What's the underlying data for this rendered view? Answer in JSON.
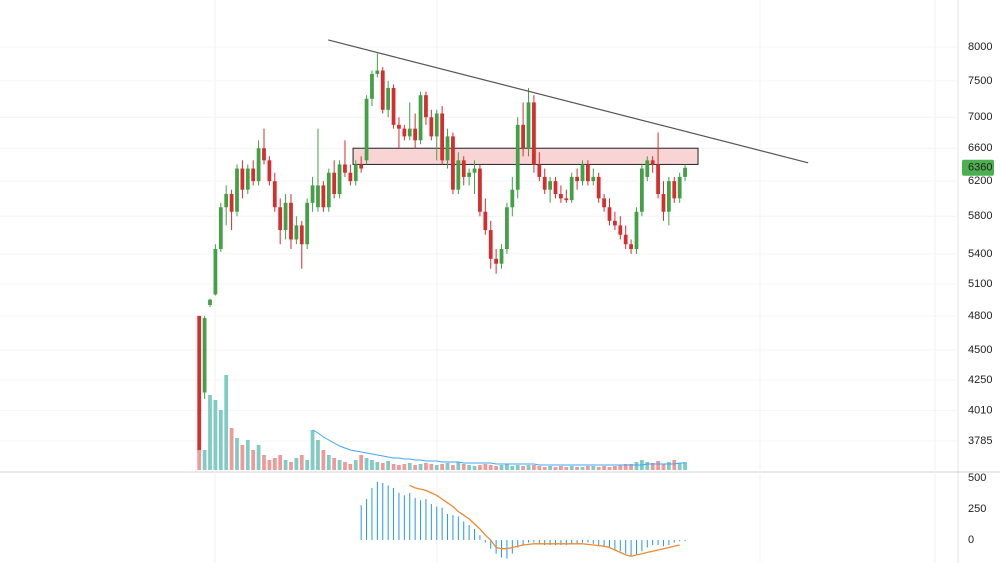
{
  "chart_data": [
    {
      "type": "candlestick",
      "log_scale": true,
      "ylim": [
        3582,
        8746
      ],
      "xlim": [
        -36.9,
        140
      ],
      "yticks": [
        3785,
        4010,
        4250,
        4500,
        4800,
        5100,
        5400,
        5800,
        6200,
        6600,
        7000,
        7500,
        8000
      ],
      "grid": true,
      "up_color": "#43a047",
      "down_color": "#d32f2f",
      "last_price": 6360,
      "last_price_color": "#4caf50",
      "trendline": {
        "x": [
          23.9,
          112.8
        ],
        "y": [
          8107,
          6420
        ],
        "color": "#555555"
      },
      "zone": {
        "x": [
          28.5,
          92.4
        ],
        "y": [
          6400,
          6600
        ],
        "fill": "#f8c9c9",
        "stroke": "#222222"
      },
      "ohlc": [
        [
          4800,
          4800,
          3650,
          3700
        ],
        [
          4150,
          4800,
          4100,
          4780
        ],
        [
          4900,
          4960,
          4880,
          4950
        ],
        [
          5000,
          5500,
          4990,
          5450
        ],
        [
          5450,
          5950,
          5420,
          5900
        ],
        [
          5900,
          6150,
          5700,
          6050
        ],
        [
          6050,
          6100,
          5650,
          5850
        ],
        [
          5850,
          6400,
          5800,
          6350
        ],
        [
          6350,
          6450,
          6000,
          6100
        ],
        [
          6100,
          6400,
          6050,
          6350
        ],
        [
          6350,
          6450,
          6150,
          6200
        ],
        [
          6200,
          6700,
          6150,
          6600
        ],
        [
          6600,
          6850,
          6400,
          6450
        ],
        [
          6450,
          6500,
          6150,
          6200
        ],
        [
          6200,
          6300,
          5850,
          5900
        ],
        [
          5900,
          6000,
          5500,
          5650
        ],
        [
          5650,
          6050,
          5550,
          5950
        ],
        [
          5950,
          6050,
          5450,
          5550
        ],
        [
          5550,
          5800,
          5500,
          5700
        ],
        [
          5700,
          5750,
          5250,
          5500
        ],
        [
          5500,
          6000,
          5450,
          5950
        ],
        [
          5950,
          6250,
          5850,
          6150
        ],
        [
          5900,
          6850,
          5850,
          6150
        ],
        [
          6150,
          6200,
          5850,
          5900
        ],
        [
          5900,
          6350,
          5850,
          6300
        ],
        [
          6300,
          6450,
          6000,
          6050
        ],
        [
          6050,
          6450,
          6000,
          6400
        ],
        [
          6400,
          6700,
          6250,
          6300
        ],
        [
          6300,
          6400,
          6150,
          6200
        ],
        [
          6200,
          6450,
          6150,
          6400
        ],
        [
          6400,
          6500,
          6300,
          6350
        ],
        [
          6450,
          7300,
          6400,
          7250
        ],
        [
          7250,
          7650,
          7150,
          7600
        ],
        [
          7600,
          7900,
          7550,
          7650
        ],
        [
          7650,
          7700,
          7050,
          7100
        ],
        [
          7100,
          7500,
          7000,
          7400
        ],
        [
          7400,
          7450,
          6850,
          6900
        ],
        [
          6900,
          7000,
          6600,
          6850
        ],
        [
          6850,
          6900,
          6700,
          6750
        ],
        [
          6750,
          7200,
          6700,
          6850
        ],
        [
          6850,
          7050,
          6600,
          6700
        ],
        [
          6700,
          7350,
          6650,
          7300
        ],
        [
          7300,
          7350,
          6900,
          7000
        ],
        [
          7000,
          7100,
          6700,
          6750
        ],
        [
          6750,
          7100,
          6450,
          7050
        ],
        [
          7050,
          7150,
          6400,
          6450
        ],
        [
          6450,
          6850,
          6350,
          6750
        ],
        [
          6750,
          6800,
          6050,
          6100
        ],
        [
          6100,
          6550,
          6050,
          6450
        ],
        [
          6450,
          6500,
          6150,
          6250
        ],
        [
          6250,
          6350,
          6150,
          6300
        ],
        [
          6300,
          6450,
          6050,
          6350
        ],
        [
          6350,
          6400,
          5800,
          5850
        ],
        [
          5850,
          6000,
          5600,
          5650
        ],
        [
          5650,
          5750,
          5250,
          5350
        ],
        [
          5350,
          5450,
          5200,
          5300
        ],
        [
          5300,
          5500,
          5250,
          5450
        ],
        [
          5450,
          5950,
          5400,
          5900
        ],
        [
          5900,
          6250,
          5800,
          6100
        ],
        [
          6100,
          7000,
          6000,
          6900
        ],
        [
          6900,
          7200,
          6500,
          6600
        ],
        [
          6600,
          7400,
          6500,
          7200
        ],
        [
          7200,
          7300,
          6300,
          6400
        ],
        [
          6400,
          6550,
          6200,
          6250
        ],
        [
          6250,
          6350,
          6050,
          6100
        ],
        [
          6100,
          6250,
          5950,
          6200
        ],
        [
          6200,
          6250,
          6000,
          6050
        ],
        [
          6050,
          6150,
          5950,
          6000
        ],
        [
          6000,
          6100,
          5950,
          5980
        ],
        [
          5980,
          6300,
          5950,
          6250
        ],
        [
          6250,
          6350,
          6100,
          6200
        ],
        [
          6200,
          6450,
          6150,
          6400
        ],
        [
          6400,
          6450,
          6150,
          6200
        ],
        [
          6200,
          6350,
          6150,
          6250
        ],
        [
          6250,
          6300,
          5950,
          6000
        ],
        [
          6000,
          6050,
          5850,
          5900
        ],
        [
          5900,
          6000,
          5700,
          5750
        ],
        [
          5750,
          5850,
          5650,
          5700
        ],
        [
          5700,
          5800,
          5550,
          5600
        ],
        [
          5600,
          5700,
          5450,
          5500
        ],
        [
          5500,
          5550,
          5400,
          5450
        ],
        [
          5450,
          5900,
          5400,
          5850
        ],
        [
          5850,
          6400,
          5800,
          6350
        ],
        [
          6250,
          6500,
          6200,
          6450
        ],
        [
          6450,
          6500,
          6300,
          6400
        ],
        [
          6400,
          6800,
          6000,
          6050
        ],
        [
          6050,
          6200,
          5750,
          5850
        ],
        [
          5850,
          6250,
          5700,
          6200
        ],
        [
          6200,
          6250,
          5950,
          6000
        ],
        [
          6000,
          6300,
          5950,
          6250
        ],
        [
          6250,
          6400,
          6200,
          6360
        ]
      ]
    },
    {
      "type": "volume",
      "ylim": [
        0,
        160
      ],
      "up_color": "#80cbc4",
      "down_color": "#ef9a9a",
      "values": [
        20,
        20,
        75,
        70,
        60,
        95,
        42,
        32,
        25,
        30,
        20,
        25,
        15,
        10,
        12,
        15,
        10,
        8,
        12,
        15,
        10,
        40,
        30,
        20,
        15,
        12,
        10,
        8,
        6,
        10,
        15,
        12,
        10,
        8,
        7,
        9,
        6,
        5,
        6,
        7,
        5,
        6,
        7,
        6,
        5,
        6,
        7,
        5,
        8,
        6,
        5,
        4,
        5,
        6,
        5,
        4,
        5,
        6,
        4,
        5,
        4,
        5,
        5,
        4,
        3,
        4,
        3,
        4,
        3,
        4,
        3,
        3,
        4,
        4,
        3,
        4,
        3,
        4,
        5,
        6,
        6,
        8,
        10,
        8,
        7,
        9,
        6,
        8,
        10,
        7,
        8
      ],
      "ma": {
        "color": "#42a5f5",
        "values": [
          null,
          null,
          null,
          null,
          null,
          null,
          null,
          null,
          null,
          null,
          null,
          null,
          null,
          null,
          null,
          null,
          null,
          null,
          null,
          null,
          null,
          40,
          37,
          33,
          30,
          27,
          24,
          22,
          20,
          19,
          18,
          17,
          16,
          15,
          14,
          13,
          12,
          12,
          11,
          11,
          10,
          10,
          9,
          9,
          9,
          8,
          8,
          8,
          8,
          7,
          7,
          7,
          7,
          7,
          7,
          6,
          6,
          6,
          6,
          6,
          6,
          6,
          6,
          5,
          5,
          5,
          5,
          5,
          5,
          5,
          5,
          5,
          5,
          5,
          5,
          5,
          5,
          5,
          5,
          5,
          5,
          5,
          5,
          6,
          6,
          6,
          6,
          6,
          6,
          7,
          7
        ]
      }
    },
    {
      "type": "macd",
      "ylim": [
        -185,
        548
      ],
      "yticks": [
        0,
        250,
        500
      ],
      "histogram": {
        "color": "#2196f3",
        "values": [
          null,
          null,
          null,
          null,
          null,
          null,
          null,
          null,
          null,
          null,
          null,
          null,
          null,
          null,
          null,
          null,
          null,
          null,
          null,
          null,
          null,
          null,
          null,
          null,
          null,
          null,
          null,
          null,
          null,
          null,
          280,
          330,
          420,
          470,
          460,
          440,
          420,
          380,
          360,
          380,
          340,
          320,
          330,
          290,
          270,
          260,
          210,
          200,
          190,
          150,
          120,
          90,
          40,
          -20,
          -70,
          -110,
          -140,
          -150,
          -110,
          -60,
          -40,
          -20,
          -20,
          -30,
          -40,
          -40,
          -40,
          -40,
          -40,
          -30,
          -30,
          -20,
          -20,
          -30,
          -40,
          -50,
          -60,
          -80,
          -90,
          -110,
          -130,
          -120,
          -90,
          -60,
          -40,
          -40,
          -50,
          -40,
          -20,
          -10,
          -10
        ]
      },
      "signal": {
        "color": "#ef8a2f",
        "values": [
          null,
          null,
          null,
          null,
          null,
          null,
          null,
          null,
          null,
          null,
          null,
          null,
          null,
          null,
          null,
          null,
          null,
          null,
          null,
          null,
          null,
          null,
          null,
          null,
          null,
          null,
          null,
          null,
          null,
          null,
          null,
          null,
          null,
          null,
          null,
          null,
          null,
          null,
          null,
          440,
          420,
          410,
          400,
          380,
          360,
          330,
          300,
          270,
          230,
          200,
          170,
          130,
          90,
          40,
          0,
          -60,
          -70,
          -70,
          -60,
          -50,
          -40,
          -35,
          -30,
          -30,
          -30,
          -30,
          -30,
          -30,
          -30,
          -30,
          -30,
          -30,
          -35,
          -40,
          -45,
          -50,
          -60,
          -80,
          -100,
          -120,
          -130,
          -120,
          -110,
          -100,
          -90,
          -80,
          -70,
          -60,
          -50,
          -40
        ]
      }
    }
  ]
}
